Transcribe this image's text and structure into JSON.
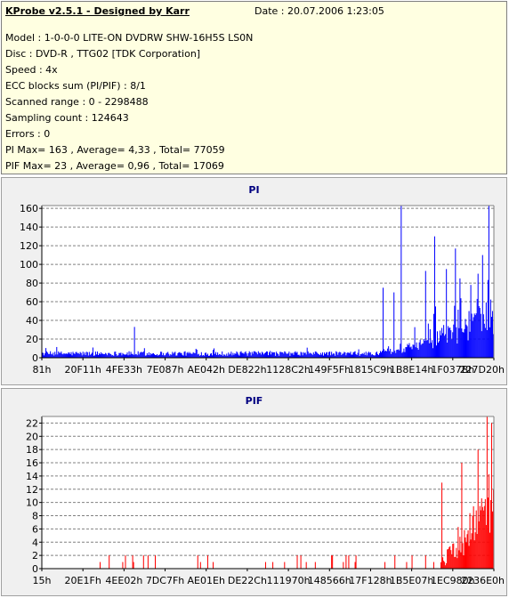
{
  "info": {
    "title": "KProbe v2.5.1 - Designed by Karr",
    "date": "Date : 20.07.2006 1:23:05",
    "lines": [
      "Model : 1-0-0-0 LITE-ON DVDRW SHW-16H5S  LS0N",
      "Disc : DVD-R , TTG02 [TDK Corporation]",
      "Speed : 4x",
      "ECC blocks sum (PI/PIF) : 8/1",
      "Scanned range : 0 - 2298488",
      "Sampling count : 124643",
      "Errors : 0",
      "PI Max= 163 , Average= 4,33 , Total= 77059",
      "PIF Max= 23 , Average= 0,96 , Total= 17069"
    ]
  },
  "colors": {
    "info_background": "#ffffe1",
    "panel_background": "#f0f0f0",
    "title_color": "#000080",
    "pi_bars": "#0000ff",
    "pif_bars": "#ff0000",
    "grid": "#808080"
  },
  "chart_data": [
    {
      "type": "bar",
      "title": "PI",
      "xlabel": "",
      "ylabel": "",
      "x_tick_labels": [
        "81h",
        "20F11h",
        "4FE33h",
        "7E087h",
        "AE042h",
        "DE822h",
        "1128C2h",
        "149F5Fh",
        "1815C9h",
        "1B8E14h",
        "1F037Bh",
        "227D20h"
      ],
      "y_ticks": [
        0,
        20,
        40,
        60,
        80,
        100,
        120,
        140,
        160
      ],
      "ylim": [
        0,
        163
      ],
      "grid": true,
      "color": "#0000ff",
      "n_samples": 500,
      "baseline_level": 4.33,
      "max": 163,
      "peaks": [
        {
          "x": 0.205,
          "value": 33
        },
        {
          "x": 0.755,
          "value": 75
        },
        {
          "x": 0.78,
          "value": 70
        },
        {
          "x": 0.795,
          "value": 163
        },
        {
          "x": 0.85,
          "value": 93
        },
        {
          "x": 0.87,
          "value": 130
        },
        {
          "x": 0.895,
          "value": 95
        },
        {
          "x": 0.915,
          "value": 117
        },
        {
          "x": 0.925,
          "value": 85
        },
        {
          "x": 0.95,
          "value": 78
        },
        {
          "x": 0.965,
          "value": 90
        },
        {
          "x": 0.975,
          "value": 110
        },
        {
          "x": 0.99,
          "value": 163
        }
      ]
    },
    {
      "type": "bar",
      "title": "PIF",
      "xlabel": "",
      "ylabel": "",
      "x_tick_labels": [
        "15h",
        "20E1Fh",
        "4EE02h",
        "7DC7Fh",
        "AE01Eh",
        "DE22Ch",
        "111970h",
        "148566h",
        "17F128h",
        "1B5E07h",
        "1EC980h",
        "2236E0h"
      ],
      "y_ticks": [
        0,
        2,
        4,
        6,
        8,
        10,
        12,
        14,
        16,
        18,
        20,
        22
      ],
      "ylim": [
        0,
        23
      ],
      "grid": true,
      "color": "#ff0000",
      "n_samples": 500,
      "baseline_level": 0.96,
      "max": 23,
      "peaks": [
        {
          "x": 0.885,
          "value": 13
        },
        {
          "x": 0.93,
          "value": 16
        },
        {
          "x": 0.965,
          "value": 18
        },
        {
          "x": 0.985,
          "value": 23
        },
        {
          "x": 0.995,
          "value": 22
        }
      ]
    }
  ]
}
